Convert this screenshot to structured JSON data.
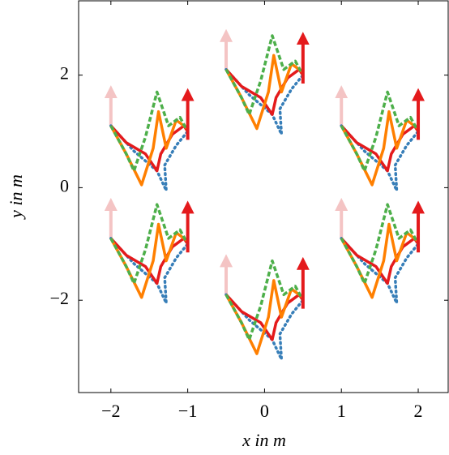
{
  "chart_data": {
    "type": "line",
    "xlabel": "x in m",
    "ylabel": "y in m",
    "xlim": [
      -2.42,
      2.39
    ],
    "ylim": [
      -3.64,
      3.32
    ],
    "xticks": [
      {
        "value": -2,
        "label": "−2"
      },
      {
        "value": -1,
        "label": "−1"
      },
      0,
      1,
      2
    ],
    "yticks": [
      {
        "value": -2,
        "label": "−2"
      },
      0,
      2
    ],
    "series": [
      {
        "color": "#377eb8",
        "dash": "dotted",
        "x": [
          -2,
          -1.7,
          -1.4,
          -1.28,
          -1.3,
          -1.15,
          -1
        ],
        "y": [
          1.1,
          0.65,
          0.3,
          -0.05,
          0.4,
          0.75,
          1
        ]
      },
      {
        "color": "#e41a1c",
        "dash": "solid",
        "x": [
          -2,
          -1.8,
          -1.55,
          -1.4,
          -1.35,
          -1.2,
          -1.05,
          -1
        ],
        "y": [
          1.1,
          0.8,
          0.6,
          0.3,
          0.6,
          0.95,
          1.1,
          1
        ]
      },
      {
        "color": "#ff7f00",
        "dash": "solid",
        "x": [
          -2,
          -1.8,
          -1.6,
          -1.45,
          -1.38,
          -1.28,
          -1.15,
          -1
        ],
        "y": [
          1.1,
          0.6,
          0.05,
          0.7,
          1.35,
          0.7,
          1.2,
          1.05
        ]
      },
      {
        "color": "#4daf4a",
        "dash": "dashed",
        "x": [
          -2,
          -1.8,
          -1.7,
          -1.55,
          -1.4,
          -1.25,
          -1.1,
          -1
        ],
        "y": [
          1.1,
          0.6,
          0.3,
          0.9,
          1.7,
          1.1,
          1.25,
          1
        ]
      },
      {
        "color": "#377eb8",
        "dash": "dotted",
        "x": [
          -0.5,
          -0.2,
          0.1,
          0.22,
          0.2,
          0.35,
          0.5
        ],
        "y": [
          2.1,
          1.65,
          1.3,
          0.95,
          1.4,
          1.75,
          2
        ]
      },
      {
        "color": "#e41a1c",
        "dash": "solid",
        "x": [
          -0.5,
          -0.3,
          -0.05,
          0.1,
          0.15,
          0.3,
          0.45,
          0.5
        ],
        "y": [
          2.1,
          1.8,
          1.6,
          1.3,
          1.6,
          1.95,
          2.1,
          2
        ]
      },
      {
        "color": "#ff7f00",
        "dash": "solid",
        "x": [
          -0.5,
          -0.3,
          -0.1,
          0.05,
          0.12,
          0.22,
          0.35,
          0.5
        ],
        "y": [
          2.1,
          1.6,
          1.05,
          1.7,
          2.35,
          1.7,
          2.2,
          2.05
        ]
      },
      {
        "color": "#4daf4a",
        "dash": "dashed",
        "x": [
          -0.5,
          -0.3,
          -0.2,
          -0.05,
          0.1,
          0.25,
          0.4,
          0.5
        ],
        "y": [
          2.1,
          1.6,
          1.3,
          1.9,
          2.7,
          2.1,
          2.25,
          2
        ]
      },
      {
        "color": "#377eb8",
        "dash": "dotted",
        "x": [
          1,
          1.3,
          1.6,
          1.72,
          1.7,
          1.85,
          2
        ],
        "y": [
          1.1,
          0.65,
          0.3,
          -0.05,
          0.4,
          0.75,
          1
        ]
      },
      {
        "color": "#e41a1c",
        "dash": "solid",
        "x": [
          1,
          1.2,
          1.45,
          1.6,
          1.65,
          1.8,
          1.95,
          2
        ],
        "y": [
          1.1,
          0.8,
          0.6,
          0.3,
          0.6,
          0.95,
          1.1,
          1
        ]
      },
      {
        "color": "#ff7f00",
        "dash": "solid",
        "x": [
          1,
          1.2,
          1.4,
          1.55,
          1.62,
          1.72,
          1.85,
          2
        ],
        "y": [
          1.1,
          0.6,
          0.05,
          0.7,
          1.35,
          0.7,
          1.2,
          1.05
        ]
      },
      {
        "color": "#4daf4a",
        "dash": "dashed",
        "x": [
          1,
          1.2,
          1.3,
          1.45,
          1.6,
          1.75,
          1.9,
          2
        ],
        "y": [
          1.1,
          0.6,
          0.3,
          0.9,
          1.7,
          1.1,
          1.25,
          1
        ]
      },
      {
        "color": "#377eb8",
        "dash": "dotted",
        "x": [
          -2,
          -1.7,
          -1.4,
          -1.28,
          -1.3,
          -1.15,
          -1
        ],
        "y": [
          -0.9,
          -1.35,
          -1.7,
          -2.05,
          -1.6,
          -1.25,
          -1
        ]
      },
      {
        "color": "#e41a1c",
        "dash": "solid",
        "x": [
          -2,
          -1.8,
          -1.55,
          -1.4,
          -1.35,
          -1.2,
          -1.05,
          -1
        ],
        "y": [
          -0.9,
          -1.2,
          -1.4,
          -1.7,
          -1.4,
          -1.05,
          -0.9,
          -1
        ]
      },
      {
        "color": "#ff7f00",
        "dash": "solid",
        "x": [
          -2,
          -1.8,
          -1.6,
          -1.45,
          -1.38,
          -1.28,
          -1.15,
          -1
        ],
        "y": [
          -0.9,
          -1.4,
          -1.95,
          -1.3,
          -0.65,
          -1.3,
          -0.8,
          -0.95
        ]
      },
      {
        "color": "#4daf4a",
        "dash": "dashed",
        "x": [
          -2,
          -1.8,
          -1.7,
          -1.55,
          -1.4,
          -1.25,
          -1.1,
          -1
        ],
        "y": [
          -0.9,
          -1.4,
          -1.7,
          -1.1,
          -0.3,
          -0.9,
          -0.75,
          -1
        ]
      },
      {
        "color": "#377eb8",
        "dash": "dotted",
        "x": [
          -0.5,
          -0.2,
          0.1,
          0.22,
          0.2,
          0.35,
          0.5
        ],
        "y": [
          -1.9,
          -2.35,
          -2.7,
          -3.05,
          -2.6,
          -2.25,
          -2
        ]
      },
      {
        "color": "#e41a1c",
        "dash": "solid",
        "x": [
          -0.5,
          -0.3,
          -0.05,
          0.1,
          0.15,
          0.3,
          0.45,
          0.5
        ],
        "y": [
          -1.9,
          -2.2,
          -2.4,
          -2.7,
          -2.4,
          -2.05,
          -1.9,
          -2
        ]
      },
      {
        "color": "#ff7f00",
        "dash": "solid",
        "x": [
          -0.5,
          -0.3,
          -0.1,
          0.05,
          0.12,
          0.22,
          0.35,
          0.5
        ],
        "y": [
          -1.9,
          -2.4,
          -2.95,
          -2.3,
          -1.65,
          -2.3,
          -1.8,
          -1.95
        ]
      },
      {
        "color": "#4daf4a",
        "dash": "dashed",
        "x": [
          -0.5,
          -0.3,
          -0.2,
          -0.05,
          0.1,
          0.25,
          0.4,
          0.5
        ],
        "y": [
          -1.9,
          -2.4,
          -2.7,
          -2.1,
          -1.3,
          -1.9,
          -1.75,
          -2
        ]
      },
      {
        "color": "#377eb8",
        "dash": "dotted",
        "x": [
          1,
          1.3,
          1.6,
          1.72,
          1.7,
          1.85,
          2
        ],
        "y": [
          -0.9,
          -1.35,
          -1.7,
          -2.05,
          -1.6,
          -1.25,
          -1
        ]
      },
      {
        "color": "#e41a1c",
        "dash": "solid",
        "x": [
          1,
          1.2,
          1.45,
          1.6,
          1.65,
          1.8,
          1.95,
          2
        ],
        "y": [
          -0.9,
          -1.2,
          -1.4,
          -1.7,
          -1.4,
          -1.05,
          -0.9,
          -1
        ]
      },
      {
        "color": "#ff7f00",
        "dash": "solid",
        "x": [
          1,
          1.2,
          1.4,
          1.55,
          1.62,
          1.72,
          1.85,
          2
        ],
        "y": [
          -0.9,
          -1.4,
          -1.95,
          -1.3,
          -0.65,
          -1.3,
          -0.8,
          -0.95
        ]
      },
      {
        "color": "#4daf4a",
        "dash": "dashed",
        "x": [
          1,
          1.2,
          1.3,
          1.45,
          1.6,
          1.75,
          1.9,
          2
        ],
        "y": [
          -0.9,
          -1.4,
          -1.7,
          -1.1,
          -0.3,
          -0.9,
          -0.75,
          -1
        ]
      }
    ],
    "arrows": [
      {
        "x": -2,
        "y0": 1.1,
        "y1": 1.75,
        "color": "#f4c4c4"
      },
      {
        "x": -0.5,
        "y0": 2.1,
        "y1": 2.75,
        "color": "#f4c4c4"
      },
      {
        "x": 1,
        "y0": 1.1,
        "y1": 1.75,
        "color": "#f4c4c4"
      },
      {
        "x": -2,
        "y0": -0.9,
        "y1": -0.25,
        "color": "#f4c4c4"
      },
      {
        "x": -0.5,
        "y0": -1.9,
        "y1": -1.25,
        "color": "#f4c4c4"
      },
      {
        "x": 1,
        "y0": -0.9,
        "y1": -0.25,
        "color": "#f4c4c4"
      },
      {
        "x": -1,
        "y0": 0.85,
        "y1": 1.7,
        "color": "#e41a1c"
      },
      {
        "x": 0.5,
        "y0": 1.85,
        "y1": 2.7,
        "color": "#e41a1c"
      },
      {
        "x": 2,
        "y0": 0.85,
        "y1": 1.7,
        "color": "#e41a1c"
      },
      {
        "x": -1,
        "y0": -1.15,
        "y1": -0.3,
        "color": "#e41a1c"
      },
      {
        "x": 0.5,
        "y0": -2.15,
        "y1": -1.3,
        "color": "#e41a1c"
      },
      {
        "x": 2,
        "y0": -1.15,
        "y1": -0.3,
        "color": "#e41a1c"
      }
    ]
  }
}
